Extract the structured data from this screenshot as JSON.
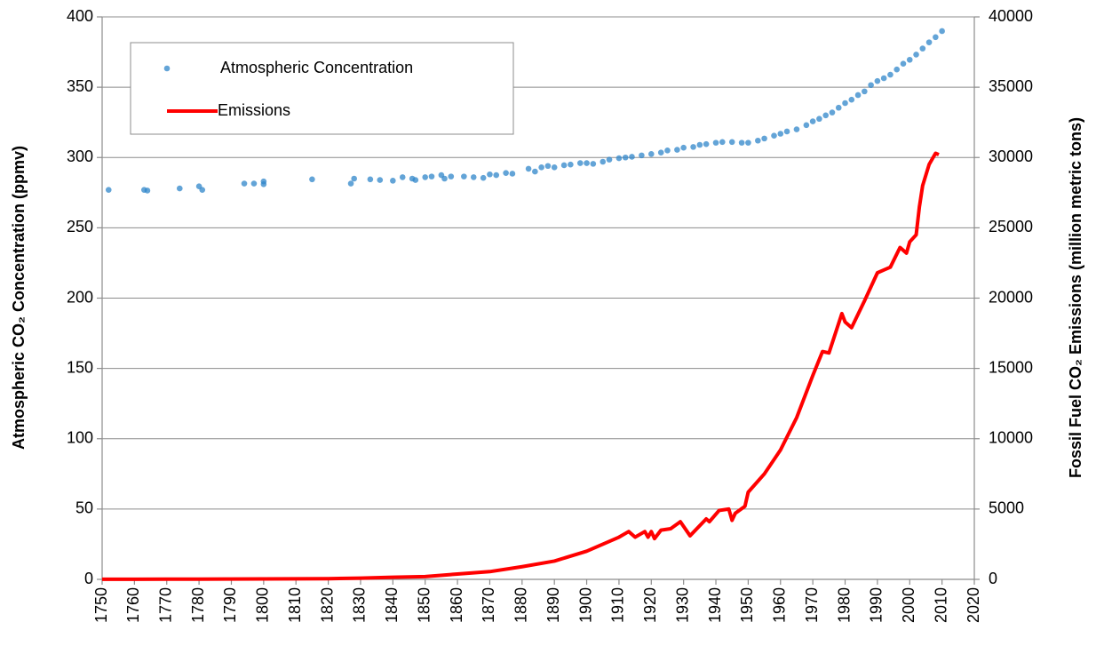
{
  "chart_data": {
    "type": "combo",
    "y_label": "Atmospheric CO₂ Concentration (ppmv)",
    "y2_label": "Fossil Fuel CO₂ Emissions (million metric tons)",
    "xlim": [
      1750,
      2020
    ],
    "xticks": [
      1750,
      1760,
      1770,
      1780,
      1790,
      1800,
      1810,
      1820,
      1830,
      1840,
      1850,
      1860,
      1870,
      1880,
      1890,
      1900,
      1910,
      1920,
      1930,
      1940,
      1950,
      1960,
      1970,
      1980,
      1990,
      2000,
      2010,
      2020
    ],
    "ylim": [
      0,
      400
    ],
    "yticks": [
      0,
      50,
      100,
      150,
      200,
      250,
      300,
      350,
      400
    ],
    "y2lim": [
      0,
      40000
    ],
    "y2ticks": [
      0,
      5000,
      10000,
      15000,
      20000,
      25000,
      30000,
      35000,
      40000
    ],
    "grid": true,
    "legend": "upper left",
    "series": [
      {
        "name": "Atmospheric Concentration",
        "type": "scatter",
        "color": "#2f86c9",
        "x": [
          1752,
          1763,
          1764,
          1774,
          1780,
          1781,
          1794,
          1797,
          1800,
          1800,
          1815,
          1827,
          1828,
          1833,
          1836,
          1840,
          1843,
          1846,
          1847,
          1850,
          1852,
          1855,
          1856,
          1858,
          1862,
          1865,
          1868,
          1870,
          1872,
          1875,
          1877,
          1882,
          1884,
          1886,
          1888,
          1890,
          1893,
          1895,
          1898,
          1900,
          1902,
          1905,
          1907,
          1910,
          1912,
          1914,
          1917,
          1920,
          1923,
          1925,
          1928,
          1930,
          1933,
          1935,
          1937,
          1940,
          1942,
          1945,
          1948,
          1950,
          1953,
          1955,
          1958,
          1960,
          1962,
          1965,
          1968,
          1970,
          1972,
          1974,
          1976,
          1978,
          1980,
          1982,
          1984,
          1986,
          1988,
          1990,
          1992,
          1994,
          1996,
          1998,
          2000,
          2002,
          2004,
          2006,
          2008,
          2010
        ],
        "values": [
          277,
          277,
          276.5,
          278,
          279.5,
          277,
          281.5,
          281.5,
          283,
          281,
          284.5,
          281.5,
          285,
          284.5,
          284,
          283.5,
          286,
          285,
          284,
          286,
          286.5,
          287.5,
          285,
          286.5,
          286.5,
          286,
          285.5,
          288,
          287.5,
          289,
          288.5,
          292,
          290,
          293,
          294,
          293,
          294.5,
          295,
          296,
          296,
          295.5,
          297,
          298.5,
          299.5,
          300,
          300.5,
          301.5,
          302.5,
          303.5,
          305,
          305.5,
          307,
          307.5,
          309,
          309.5,
          310.5,
          311,
          311,
          310.5,
          310.5,
          312,
          313.5,
          315.5,
          316.9,
          318.5,
          320,
          323,
          325.7,
          327.5,
          330,
          332,
          335.4,
          338.7,
          341.1,
          344.4,
          347,
          351.5,
          354.4,
          356.4,
          358.9,
          362.6,
          366.7,
          369.5,
          373.2,
          377.5,
          381.9,
          385.6,
          389.9
        ]
      },
      {
        "name": "Emissions",
        "type": "line",
        "axis": "y2",
        "color": "#ff0000",
        "x": [
          1750,
          1760,
          1770,
          1780,
          1790,
          1800,
          1810,
          1820,
          1830,
          1840,
          1850,
          1860,
          1870,
          1880,
          1890,
          1900,
          1910,
          1913,
          1915,
          1918,
          1919,
          1920,
          1921,
          1923,
          1926,
          1929,
          1932,
          1937,
          1938,
          1941,
          1944,
          1945,
          1946,
          1949,
          1950,
          1955,
          1960,
          1965,
          1970,
          1973,
          1975,
          1979,
          1980,
          1982,
          1986,
          1990,
          1992,
          1994,
          1997,
          1999,
          2000,
          2002,
          2003,
          2004,
          2006,
          2008,
          2009
        ],
        "values": [
          9,
          10,
          14,
          18,
          27,
          30,
          40,
          50,
          90,
          150,
          200,
          380,
          550,
          900,
          1300,
          2000,
          3000,
          3400,
          3000,
          3400,
          3000,
          3400,
          2900,
          3500,
          3600,
          4100,
          3100,
          4300,
          4100,
          4900,
          5000,
          4200,
          4700,
          5200,
          6200,
          7500,
          9200,
          11500,
          14500,
          16200,
          16100,
          18900,
          18300,
          17900,
          19800,
          21800,
          22000,
          22200,
          23600,
          23200,
          24000,
          24500,
          26500,
          28000,
          29500,
          30300,
          30200
        ]
      }
    ]
  }
}
